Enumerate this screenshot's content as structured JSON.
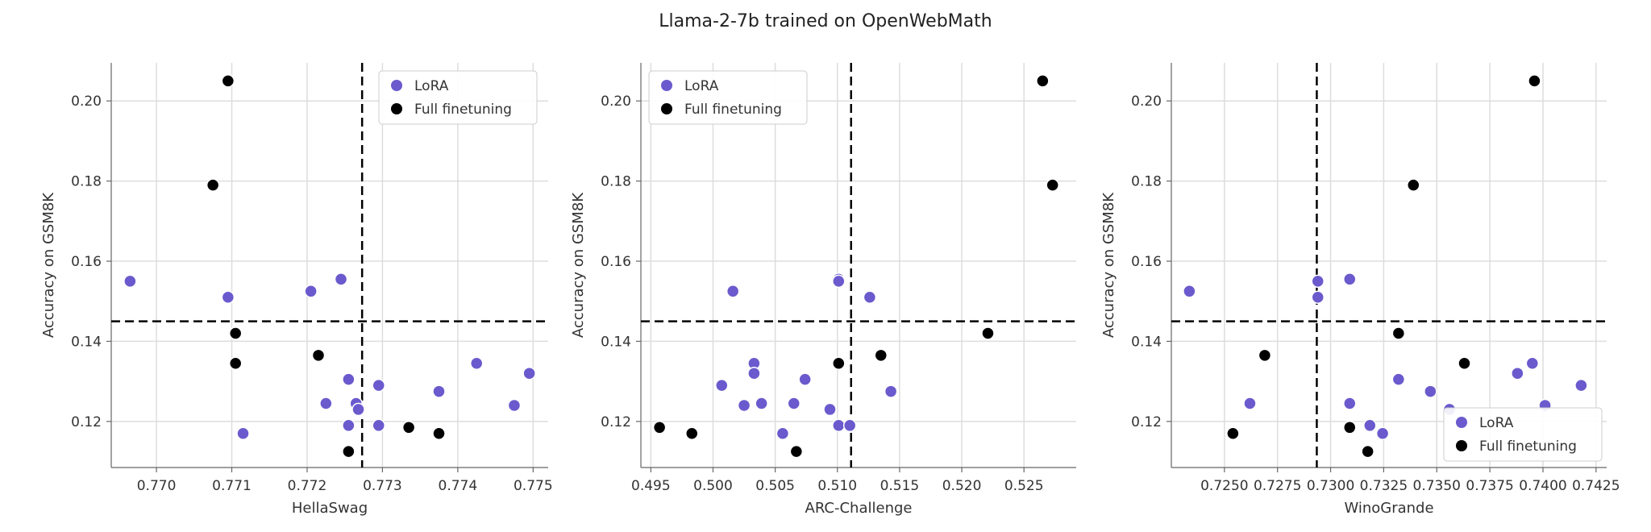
{
  "figure": {
    "title": "Llama-2-7b trained on OpenWebMath"
  },
  "colors": {
    "lora": "#6a5acd",
    "full": "#000000",
    "grid": "#dddddd",
    "axis": "#666666",
    "threshold": "#000000"
  },
  "chart_data": [
    {
      "type": "scatter",
      "xlabel": "HellaSwag",
      "ylabel": "Accuracy on GSM8K",
      "xlim": [
        0.7694,
        0.7752
      ],
      "ylim": [
        0.1085,
        0.2095
      ],
      "xticks": [
        0.77,
        0.771,
        0.772,
        0.773,
        0.774,
        0.775
      ],
      "xtick_labels": [
        "0.770",
        "0.771",
        "0.772",
        "0.773",
        "0.774",
        "0.775"
      ],
      "yticks": [
        0.12,
        0.14,
        0.16,
        0.18,
        0.2
      ],
      "ytick_labels": [
        "0.12",
        "0.14",
        "0.16",
        "0.18",
        "0.20"
      ],
      "grid": true,
      "legend_position": "top-right",
      "thresholds": {
        "x": 0.77273,
        "y": 0.145
      },
      "series": [
        {
          "name": "LoRA",
          "color_key": "lora",
          "x": [
            0.76965,
            0.77095,
            0.77115,
            0.77205,
            0.77225,
            0.77245,
            0.77255,
            0.77255,
            0.77265,
            0.77268,
            0.77295,
            0.77295,
            0.77375,
            0.77425,
            0.77475,
            0.77495
          ],
          "y": [
            0.155,
            0.151,
            0.117,
            0.1525,
            0.1245,
            0.1555,
            0.1305,
            0.119,
            0.1245,
            0.123,
            0.129,
            0.119,
            0.1275,
            0.1345,
            0.124,
            0.132
          ]
        },
        {
          "name": "Full finetuning",
          "color_key": "full",
          "x": [
            0.77095,
            0.77075,
            0.77105,
            0.77105,
            0.77215,
            0.77255,
            0.77335,
            0.77375
          ],
          "y": [
            0.205,
            0.179,
            0.142,
            0.1345,
            0.1365,
            0.1125,
            0.1185,
            0.117
          ]
        }
      ]
    },
    {
      "type": "scatter",
      "xlabel": "ARC-Challenge",
      "ylabel": "Accuracy on GSM8K",
      "xlim": [
        0.4942,
        0.5292
      ],
      "ylim": [
        0.1085,
        0.2095
      ],
      "xticks": [
        0.495,
        0.5,
        0.505,
        0.51,
        0.515,
        0.52,
        0.525
      ],
      "xtick_labels": [
        "0.495",
        "0.500",
        "0.505",
        "0.510",
        "0.515",
        "0.520",
        "0.525"
      ],
      "yticks": [
        0.12,
        0.14,
        0.16,
        0.18,
        0.2
      ],
      "ytick_labels": [
        "0.12",
        "0.14",
        "0.16",
        "0.18",
        "0.20"
      ],
      "grid": true,
      "legend_position": "top-left",
      "thresholds": {
        "x": 0.5111,
        "y": 0.145
      },
      "series": [
        {
          "name": "LoRA",
          "color_key": "lora",
          "x": [
            0.5016,
            0.5007,
            0.5025,
            0.5033,
            0.5033,
            0.5039,
            0.5056,
            0.5065,
            0.5074,
            0.5094,
            0.5101,
            0.5101,
            0.5101,
            0.511,
            0.5126,
            0.5143
          ],
          "y": [
            0.1525,
            0.129,
            0.124,
            0.1345,
            0.132,
            0.1245,
            0.117,
            0.1245,
            0.1305,
            0.123,
            0.1555,
            0.155,
            0.119,
            0.119,
            0.151,
            0.1275
          ]
        },
        {
          "name": "Full finetuning",
          "color_key": "full",
          "x": [
            0.4957,
            0.4983,
            0.5067,
            0.5101,
            0.5135,
            0.5221,
            0.5265,
            0.5273
          ],
          "y": [
            0.1185,
            0.117,
            0.1125,
            0.1345,
            0.1365,
            0.142,
            0.205,
            0.179
          ]
        }
      ]
    },
    {
      "type": "scatter",
      "xlabel": "WinoGrande",
      "ylabel": "Accuracy on GSM8K",
      "xlim": [
        0.7225,
        0.743
      ],
      "ylim": [
        0.1085,
        0.2095
      ],
      "xticks": [
        0.725,
        0.7275,
        0.73,
        0.7325,
        0.735,
        0.7375,
        0.74,
        0.7425
      ],
      "xtick_labels": [
        "0.7250",
        "0.7275",
        "0.7300",
        "0.7325",
        "0.7350",
        "0.7375",
        "0.7400",
        "0.7425"
      ],
      "yticks": [
        0.12,
        0.14,
        0.16,
        0.18,
        0.2
      ],
      "ytick_labels": [
        "0.12",
        "0.14",
        "0.16",
        "0.18",
        "0.20"
      ],
      "grid": true,
      "legend_position": "bottom-right",
      "thresholds": {
        "x": 0.72935,
        "y": 0.145
      },
      "series": [
        {
          "name": "LoRA",
          "color_key": "lora",
          "x": [
            0.72335,
            0.7294,
            0.7294,
            0.7309,
            0.7262,
            0.7309,
            0.73185,
            0.73245,
            0.7332,
            0.7347,
            0.7356,
            0.7388,
            0.7395,
            0.7401,
            0.7418,
            0.7309
          ],
          "y": [
            0.1525,
            0.155,
            0.151,
            0.1555,
            0.1245,
            0.1245,
            0.119,
            0.117,
            0.1305,
            0.1275,
            0.123,
            0.132,
            0.1345,
            0.124,
            0.129,
            0.1185
          ]
        },
        {
          "name": "Full finetuning",
          "color_key": "full",
          "x": [
            0.7254,
            0.7269,
            0.7309,
            0.73175,
            0.7332,
            0.7339,
            0.7363,
            0.7396
          ],
          "y": [
            0.117,
            0.1365,
            0.1185,
            0.1125,
            0.142,
            0.179,
            0.1345,
            0.205
          ]
        }
      ]
    }
  ]
}
